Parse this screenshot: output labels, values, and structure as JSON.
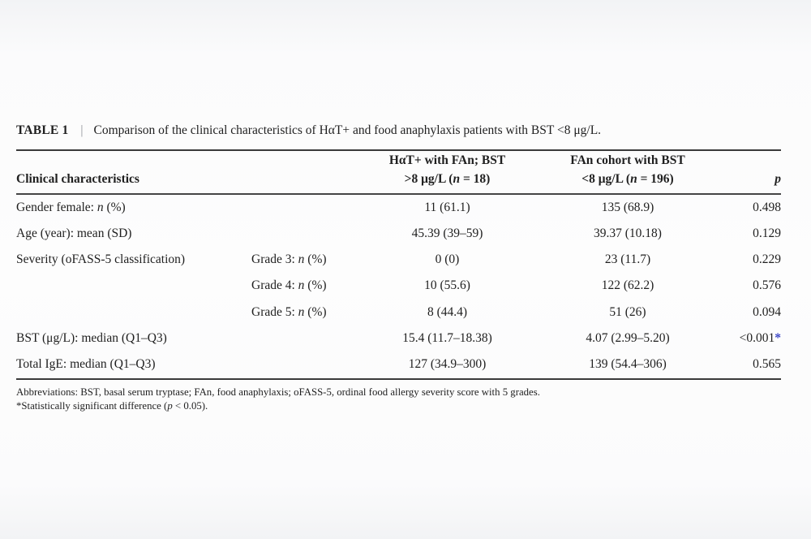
{
  "table": {
    "label": "TABLE 1",
    "separator": "|",
    "caption": "Comparison of the clinical characteristics of HαT+ and food anaphylaxis patients with BST <8 μg/L.",
    "significant_color": "#3c46c8",
    "columns": [
      {
        "id": "characteristic",
        "header": "Clinical characteristics",
        "align": "left"
      },
      {
        "id": "grade",
        "header": "",
        "align": "left"
      },
      {
        "id": "hat_cohort",
        "header_lines": [
          "HαT+ with FAn; BST",
          ">8 μg/L (n = 18)"
        ],
        "align": "center"
      },
      {
        "id": "fan_cohort",
        "header_lines": [
          "FAn cohort with BST",
          "<8 μg/L (n = 196)"
        ],
        "align": "center"
      },
      {
        "id": "p",
        "header": "p",
        "align": "right"
      }
    ],
    "rows": [
      {
        "characteristic": "Gender female: n (%)",
        "grade": "",
        "hat": "11 (61.1)",
        "fan": "135 (68.9)",
        "p": "0.498"
      },
      {
        "characteristic": "Age (year): mean (SD)",
        "grade": "",
        "hat": "45.39 (39–59)",
        "fan": "39.37 (10.18)",
        "p": "0.129"
      },
      {
        "characteristic": "Severity (oFASS-5 classification)",
        "grade": "Grade 3: n (%)",
        "hat": "0 (0)",
        "fan": "23 (11.7)",
        "p": "0.229"
      },
      {
        "characteristic": "",
        "grade": "Grade 4: n (%)",
        "hat": "10 (55.6)",
        "fan": "122 (62.2)",
        "p": "0.576"
      },
      {
        "characteristic": "",
        "grade": "Grade 5: n (%)",
        "hat": "8 (44.4)",
        "fan": "51 (26)",
        "p": "0.094"
      },
      {
        "characteristic": "BST (μg/L): median (Q1–Q3)",
        "grade": "",
        "hat": "15.4 (11.7–18.38)",
        "fan": "4.07 (2.99–5.20)",
        "p": "<0.001*"
      },
      {
        "characteristic": "Total IgE: median (Q1–Q3)",
        "grade": "",
        "hat": "127 (34.9–300)",
        "fan": "139 (54.4–306)",
        "p": "0.565"
      }
    ],
    "footnotes": [
      "Abbreviations: BST, basal serum tryptase; FAn, food anaphylaxis; oFASS-5, ordinal food allergy severity score with 5 grades.",
      "*Statistically significant difference (p < 0.05)."
    ]
  }
}
